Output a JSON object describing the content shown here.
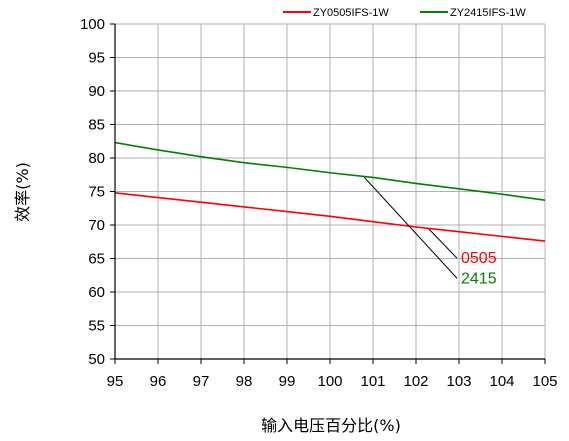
{
  "chart_data": {
    "type": "line",
    "xlabel": "输入电压百分比(%)",
    "ylabel": "效率(%)",
    "xlim": [
      95,
      105
    ],
    "ylim": [
      50,
      100
    ],
    "x_ticks": [
      "95",
      "96",
      "97",
      "98",
      "99",
      "100",
      "101",
      "102",
      "103",
      "104",
      "105"
    ],
    "y_ticks": [
      "50",
      "55",
      "60",
      "65",
      "70",
      "75",
      "80",
      "85",
      "90",
      "95",
      "100"
    ],
    "grid": true,
    "legend_position": "top-right",
    "series": [
      {
        "name": "ZY0505IFS-1W",
        "color": "#ff0000",
        "x": [
          95,
          96,
          97,
          98,
          99,
          100,
          101,
          102,
          103,
          104,
          105
        ],
        "y": [
          74.8,
          74.1,
          73.4,
          72.7,
          72.0,
          71.3,
          70.5,
          69.7,
          69.0,
          68.3,
          67.6
        ]
      },
      {
        "name": "ZY2415IFS-1W",
        "color": "#008000",
        "x": [
          95,
          96,
          97,
          98,
          99,
          100,
          101,
          102,
          103,
          104,
          105
        ],
        "y": [
          82.3,
          81.2,
          80.2,
          79.3,
          78.6,
          77.8,
          77.1,
          76.2,
          75.4,
          74.6,
          73.7
        ]
      }
    ],
    "annotations": [
      {
        "label": "0505",
        "color": "#ff0000",
        "point": [
          102.3,
          69.4
        ],
        "text_at": [
          103.0,
          65.2
        ]
      },
      {
        "label": "2415",
        "color": "#008000",
        "point": [
          100.8,
          77.1
        ],
        "text_at": [
          103.0,
          62.2
        ]
      }
    ]
  }
}
